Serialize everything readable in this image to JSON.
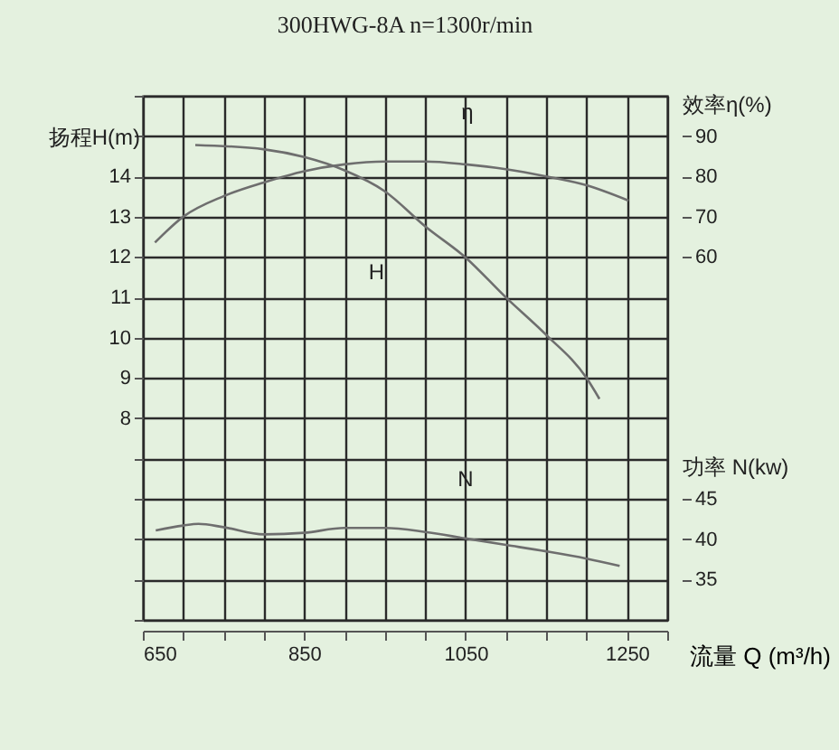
{
  "chart_data": {
    "type": "line",
    "title": "300HWG-8A   n=1300r/min",
    "xlabel": "流量 Q (m³/h)",
    "ylabel": "扬程H(m)",
    "y2label": "效率η(%)",
    "y3label": "功率 N(kw)",
    "xlim": [
      650,
      1300
    ],
    "xticks": [
      650,
      {
        "value": 700,
        "label": null
      },
      {
        "value": 750,
        "label": null
      },
      {
        "value": 800,
        "label": null
      },
      850,
      {
        "value": 900,
        "label": null
      },
      {
        "value": 950,
        "label": null
      },
      {
        "value": 1000,
        "label": null
      },
      1050,
      {
        "value": 1100,
        "label": null
      },
      {
        "value": 1150,
        "label": null
      },
      {
        "value": 1200,
        "label": null
      },
      1250,
      {
        "value": 1300,
        "label": null
      }
    ],
    "ylim": [
      3,
      16
    ],
    "yticks": [
      {
        "value": 3,
        "label": null
      },
      {
        "value": 4,
        "label": null
      },
      {
        "value": 5,
        "label": null
      },
      {
        "value": 6,
        "label": null
      },
      {
        "value": 7,
        "label": null
      },
      8,
      9,
      10,
      11,
      12,
      13,
      14,
      {
        "value": 15,
        "label": null
      },
      {
        "value": 16,
        "label": null
      }
    ],
    "y2lim": [
      -30,
      100
    ],
    "y2ticks": [
      60,
      70,
      80,
      90
    ],
    "y3lim": [
      30,
      95
    ],
    "y3ticks": [
      35,
      40,
      45
    ],
    "grid": true,
    "marker": "none",
    "line_style": "solid",
    "series": [
      {
        "color": "#6e6e6e",
        "x": [
          715,
          801,
          850,
          900,
          950,
          1000,
          1050,
          1100,
          1150,
          1200,
          1216
        ],
        "values": [
          14.78,
          14.67,
          14.48,
          14.15,
          13.63,
          12.76,
          11.99,
          11.0,
          10.07,
          9.0,
          8.48
        ]
      },
      {
        "color": "#6e6e6e",
        "axis": "y2",
        "x": [
          665,
          700,
          750,
          800,
          850,
          900,
          950,
          1000,
          1050,
          1100,
          1150,
          1200,
          1252
        ],
        "values": [
          63.6,
          70,
          75.1,
          78.5,
          81.3,
          83,
          83.7,
          83.7,
          83,
          81.8,
          80,
          77.8,
          74
        ]
      },
      {
        "color": "#6e6e6e",
        "axis": "y3",
        "x": [
          666,
          700,
          719,
          750,
          800,
          850,
          900,
          950,
          1000,
          1050,
          1100,
          1150,
          1200,
          1241
        ],
        "values": [
          41.1,
          41.7,
          41.9,
          41.5,
          40.6,
          40.8,
          41.4,
          41.4,
          40.9,
          40.1,
          39.3,
          38.5,
          37.6,
          36.7
        ]
      }
    ],
    "annotations": [
      {
        "text": "H",
        "x": 1000,
        "y": 12.76
      },
      "η",
      "N"
    ]
  }
}
